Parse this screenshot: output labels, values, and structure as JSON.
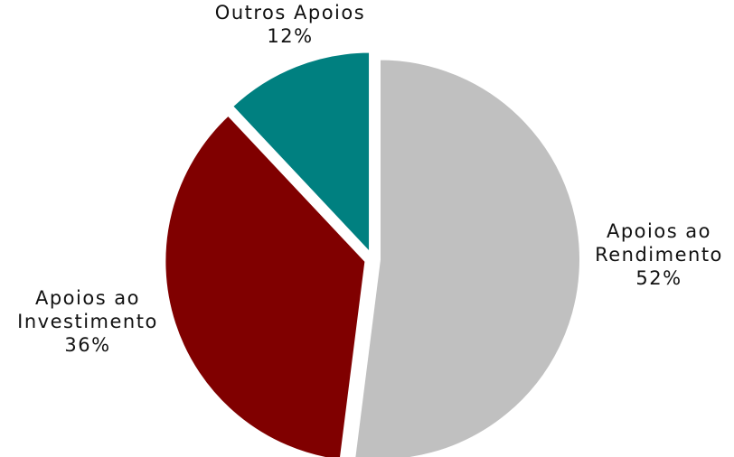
{
  "chart_data": {
    "type": "pie",
    "title": "",
    "slices": [
      {
        "name": "Apoios ao Rendimento",
        "label_lines": [
          "Apoios ao",
          "Rendimento"
        ],
        "value": 52,
        "value_label": "52%",
        "color": "#c0c0c0"
      },
      {
        "name": "Apoios ao Investimento",
        "label_lines": [
          "Apoios ao",
          "Investimento"
        ],
        "value": 36,
        "value_label": "36%",
        "color": "#800000"
      },
      {
        "name": "Outros Apoios",
        "label_lines": [
          "Outros Apoios"
        ],
        "value": 12,
        "value_label": "12%",
        "color": "#008080"
      }
    ],
    "start_angle_deg": 0,
    "direction": "clockwise",
    "exploded": true,
    "legend": "none"
  }
}
